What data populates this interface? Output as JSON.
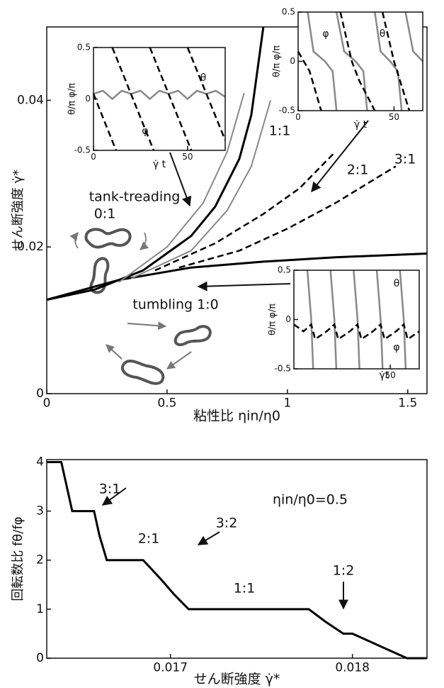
{
  "chart_data": [
    {
      "type": "line",
      "x_label": "粘性比 ηin/η0",
      "y_label": "せん断強度 γ̇*",
      "xlim": [
        0,
        1.58
      ],
      "ylim": [
        0,
        0.05
      ],
      "xticks": [
        0,
        0.5,
        1,
        1.5
      ],
      "yticks": [
        0,
        0.02,
        0.04
      ],
      "annotations": [
        "1:1",
        "2:1",
        "3:1",
        "tank-treading",
        "0:1",
        "tumbling 1:0"
      ],
      "series": [
        {
          "color": "#000000",
          "dash": false,
          "width": 3,
          "x": [
            0,
            0.2,
            0.4,
            0.6,
            0.7,
            0.8,
            0.85,
            0.9
          ],
          "values": [
            0.0128,
            0.0142,
            0.0168,
            0.0215,
            0.0255,
            0.032,
            0.038,
            0.05
          ]
        },
        {
          "color": "#000000",
          "dash": false,
          "width": 3,
          "x": [
            0,
            0.3,
            0.6,
            0.9,
            1.2,
            1.58
          ],
          "values": [
            0.0128,
            0.0155,
            0.0172,
            0.018,
            0.0186,
            0.0191
          ]
        },
        {
          "color": "#888888",
          "dash": false,
          "width": 2,
          "x": [
            0.3,
            0.5,
            0.65,
            0.75,
            0.82
          ],
          "values": [
            0.0152,
            0.02,
            0.026,
            0.033,
            0.041
          ]
        },
        {
          "color": "#888888",
          "dash": false,
          "width": 2,
          "x": [
            0.35,
            0.6,
            0.75,
            0.85,
            0.93
          ],
          "values": [
            0.0157,
            0.0195,
            0.025,
            0.031,
            0.04
          ]
        },
        {
          "color": "#000000",
          "dash": true,
          "width": 2.5,
          "x": [
            0.45,
            0.7,
            0.9,
            1.05,
            1.2
          ],
          "values": [
            0.0168,
            0.0205,
            0.0245,
            0.028,
            0.033
          ]
        },
        {
          "color": "#000000",
          "dash": true,
          "width": 2.5,
          "x": [
            0.55,
            0.8,
            1.0,
            1.2,
            1.45
          ],
          "values": [
            0.0172,
            0.0195,
            0.0225,
            0.026,
            0.031
          ]
        }
      ]
    },
    {
      "type": "line",
      "x_label": "γ̇ t",
      "y_label": "θ/π φ/π",
      "xlim": [
        0,
        70
      ],
      "ylim": [
        -0.5,
        0.5
      ],
      "xticks": [
        0,
        50
      ],
      "yticks": [
        -0.5,
        0,
        0.5
      ],
      "annotations": [
        "θ",
        "φ"
      ],
      "series": [
        {
          "color": "#888888",
          "dash": false,
          "width": 2.5,
          "x": [
            0,
            5,
            10,
            15,
            20,
            25,
            30,
            35,
            40,
            45,
            50,
            55,
            60,
            65,
            70
          ],
          "values": [
            0.05,
            0.08,
            0.0,
            0.08,
            0.05,
            0.08,
            0.0,
            0.08,
            0.05,
            0.08,
            0.0,
            0.08,
            0.05,
            0.08,
            0.02
          ]
        },
        {
          "color": "#000000",
          "dash": true,
          "width": 2.5,
          "x": [
            0,
            12,
            12,
            10,
            32,
            32,
            30,
            52,
            52,
            50,
            70
          ],
          "values": [
            0.05,
            -0.5,
            null,
            0.5,
            -0.5,
            null,
            0.5,
            -0.5,
            null,
            0.5,
            -0.4
          ]
        }
      ]
    },
    {
      "type": "line",
      "x_label": "γ̇ t",
      "y_label": "θ/π φ/π",
      "xlim": [
        0,
        65
      ],
      "ylim": [
        -0.5,
        0.5
      ],
      "xticks": [
        0,
        50
      ],
      "yticks": [
        -0.5,
        0,
        0.5
      ],
      "annotations": [
        "φ",
        "θ"
      ],
      "series": [
        {
          "color": "#888888",
          "dash": false,
          "width": 2.5,
          "x": [
            5,
            8,
            14,
            18,
            20,
            20,
            20,
            24,
            30,
            34,
            36,
            36,
            40,
            43,
            48,
            52,
            54,
            54,
            56,
            60,
            65
          ],
          "values": [
            0.5,
            0.1,
            0,
            -0.1,
            -0.5,
            null,
            0.5,
            0.1,
            0,
            -0.1,
            -0.5,
            null,
            0.5,
            0.1,
            0,
            -0.1,
            -0.5,
            null,
            0.5,
            0.1,
            0
          ]
        },
        {
          "color": "#000000",
          "dash": true,
          "width": 2.5,
          "x": [
            0,
            6,
            12,
            12,
            22,
            28,
            32,
            40,
            40,
            44,
            50,
            58
          ],
          "values": [
            0.1,
            -0.1,
            -0.5,
            null,
            0.5,
            0,
            -0.2,
            -0.5,
            null,
            0.5,
            0,
            -0.5
          ]
        }
      ]
    },
    {
      "type": "line",
      "x_label": "γ̇t",
      "y_label": "θ/π φ/π",
      "xlim": [
        0,
        65
      ],
      "ylim": [
        -0.5,
        0.5
      ],
      "xticks": [
        50
      ],
      "yticks": [
        -0.5,
        0,
        0.5
      ],
      "annotations": [
        "θ",
        "φ"
      ],
      "series": [
        {
          "color": "#888888",
          "dash": false,
          "width": 2.5,
          "x": [
            7,
            9,
            10,
            10,
            19,
            21,
            22,
            22,
            31,
            33,
            34,
            34,
            43,
            45,
            46,
            46,
            55,
            57,
            58
          ],
          "values": [
            0.5,
            0,
            -0.5,
            null,
            0.5,
            0,
            -0.5,
            null,
            0.5,
            0,
            -0.5,
            null,
            0.5,
            0,
            -0.5,
            null,
            0.5,
            0,
            -0.5
          ]
        },
        {
          "color": "#000000",
          "dash": true,
          "width": 2.5,
          "x": [
            0,
            5,
            9,
            11,
            17,
            21,
            23,
            29,
            33,
            35,
            41,
            45,
            47,
            53,
            57,
            59,
            65
          ],
          "values": [
            -0.05,
            -0.12,
            -0.05,
            -0.2,
            -0.12,
            -0.05,
            -0.2,
            -0.12,
            -0.05,
            -0.2,
            -0.12,
            -0.05,
            -0.2,
            -0.12,
            -0.05,
            -0.2,
            -0.12
          ]
        }
      ]
    },
    {
      "type": "line",
      "x_label": "せん断強度 γ̇* ",
      "y_label": "回転数比 fθ/fφ",
      "xlim": [
        0.01632,
        0.01841
      ],
      "ylim": [
        0,
        4.05
      ],
      "xticks": [
        0.017,
        0.018
      ],
      "yticks": [
        0,
        1,
        2,
        3,
        4
      ],
      "annotations": [
        "3:1",
        "2:1",
        "3:2",
        "1:1",
        "1:2",
        "ηin/η0=0.5"
      ],
      "series": [
        {
          "color": "#000000",
          "dash": false,
          "width": 3,
          "x": [
            0.01632,
            0.0164,
            0.01646,
            0.01658,
            0.01661,
            0.01665,
            0.01685,
            0.01695,
            0.01702,
            0.0171,
            0.01776,
            0.01785,
            0.01795,
            0.018,
            0.01815,
            0.0183,
            0.01841
          ],
          "values": [
            4,
            4,
            3,
            3,
            2.5,
            2,
            2,
            1.6,
            1.3,
            1,
            1,
            0.75,
            0.5,
            0.5,
            0.25,
            0,
            0
          ]
        }
      ]
    }
  ]
}
